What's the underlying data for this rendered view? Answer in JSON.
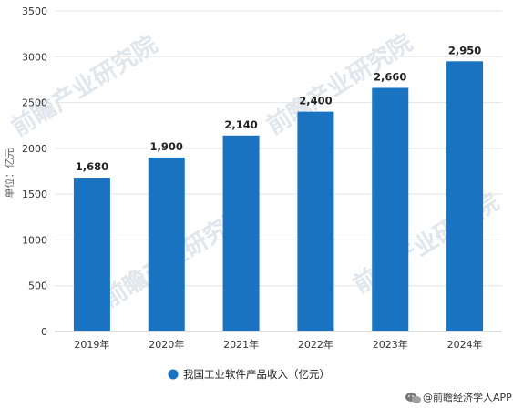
{
  "chart_data": {
    "type": "bar",
    "categories": [
      "2019年",
      "2020年",
      "2021年",
      "2022年",
      "2023年",
      "2024年"
    ],
    "values": [
      1680,
      1900,
      2140,
      2400,
      2660,
      2950
    ],
    "value_labels": [
      "1,680",
      "1,900",
      "2,140",
      "2,400",
      "2,660",
      "2,950"
    ],
    "ylabel": "单位：亿元",
    "ylim": [
      0,
      3500
    ],
    "yticks": [
      0,
      500,
      1000,
      1500,
      2000,
      2500,
      3000,
      3500
    ],
    "ytick_labels": [
      "0",
      "500",
      "1000",
      "1500",
      "2000",
      "2500",
      "3000",
      "3500"
    ],
    "grid": true,
    "legend_position": "bottom",
    "series": [
      {
        "name": "我国工业软件产品收入（亿元）",
        "color": "#1a73c0"
      }
    ]
  },
  "watermark": {
    "text": "前瞻产业研究院"
  },
  "footer": {
    "source": "@前瞻经济学人APP",
    "icon": "wechat-icon"
  },
  "colors": {
    "bar": "#1a73c0",
    "grid": "#e4e4e4",
    "axis": "#bbbbbb"
  }
}
